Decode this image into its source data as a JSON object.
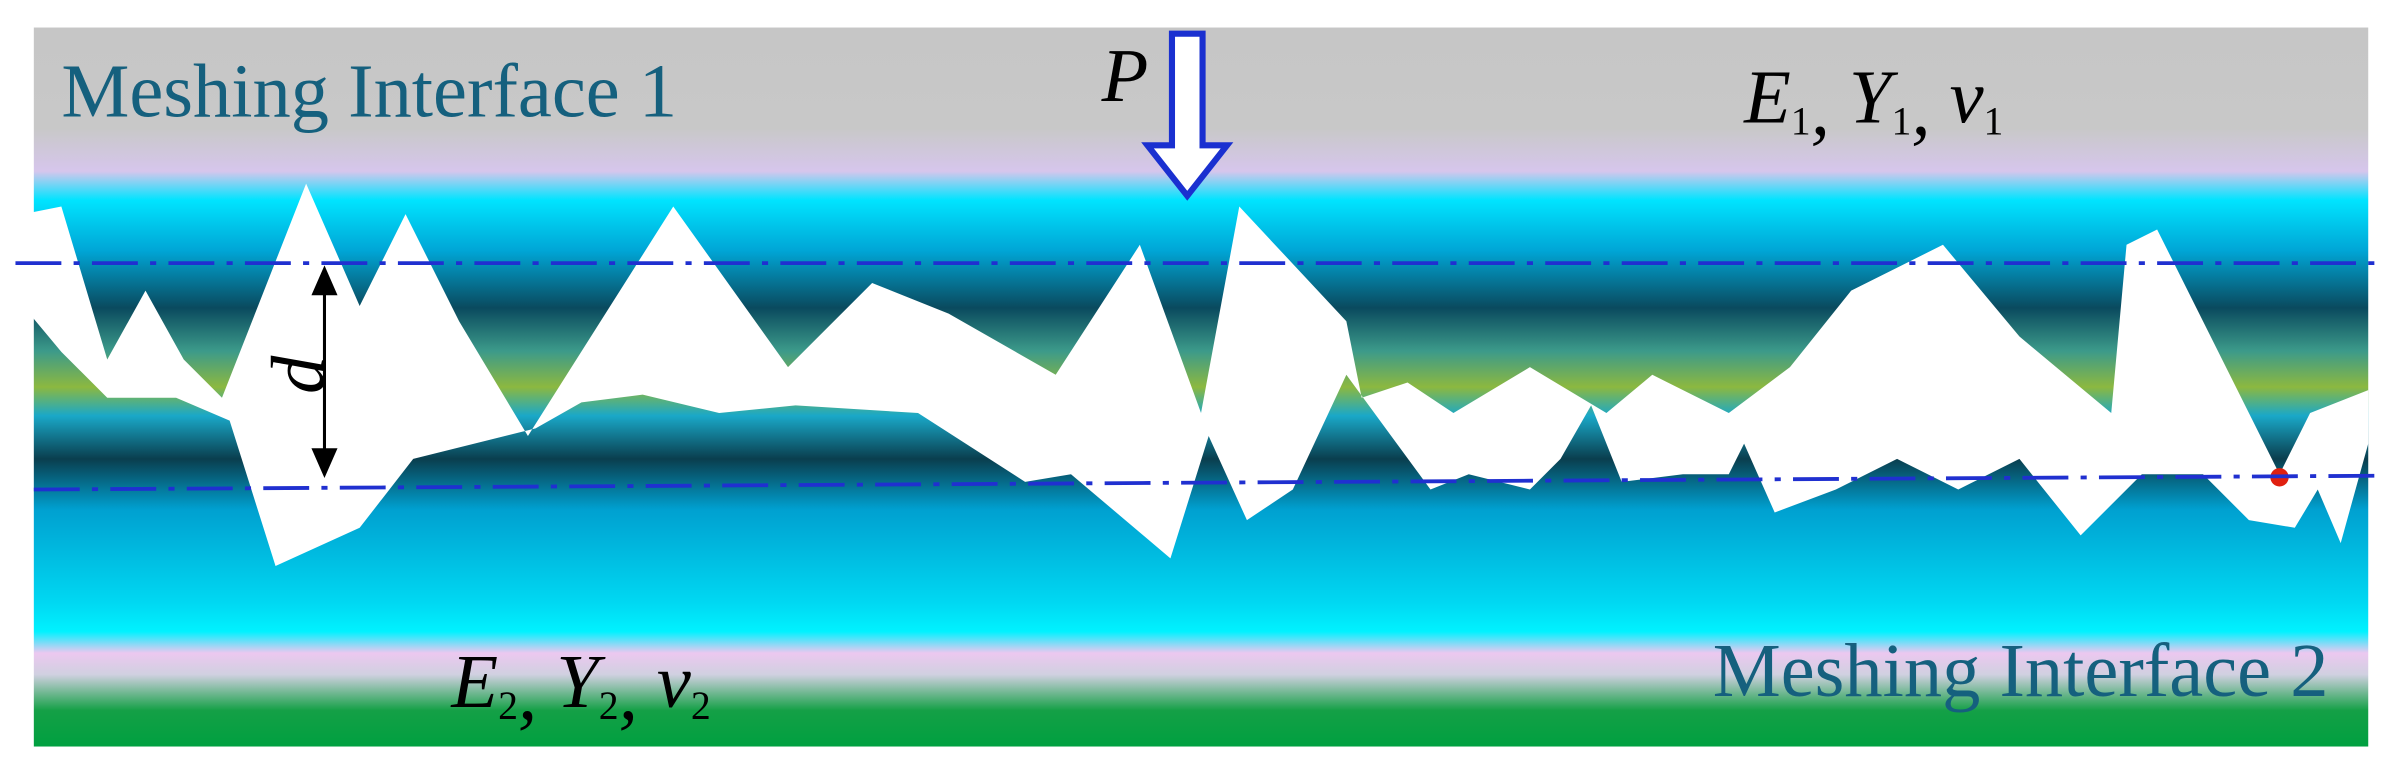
{
  "labels": {
    "interface_top": "Meshing Interface 1",
    "interface_bottom": "Meshing Interface 2",
    "load": "P",
    "separation": "d"
  },
  "materials": [
    {
      "symbols": [
        "E",
        "Y",
        "ν"
      ],
      "subscript": "1"
    },
    {
      "symbols": [
        "E",
        "Y",
        "ν"
      ],
      "subscript": "2"
    }
  ],
  "separator": ", "
}
